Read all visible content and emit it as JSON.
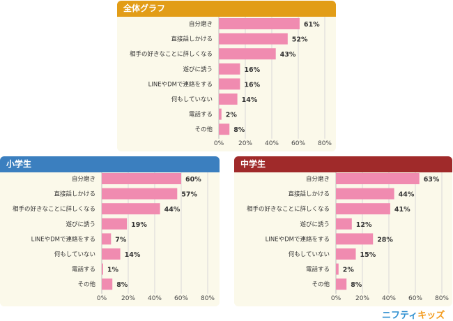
{
  "chart_data": [
    {
      "type": "bar",
      "orientation": "horizontal",
      "title": "全体グラフ",
      "header_color": "#e29d17",
      "bar_color": "#f08bb0",
      "categories": [
        "自分磨き",
        "直接話しかける",
        "相手の好きなことに詳しくなる",
        "遊びに誘う",
        "LINEやDMで連絡をする",
        "何もしていない",
        "電話する",
        "その他"
      ],
      "values": [
        61,
        52,
        43,
        16,
        16,
        14,
        2,
        8
      ],
      "value_suffix": "%",
      "xlim": [
        0,
        80
      ],
      "ticks": [
        "0%",
        "20%",
        "40%",
        "60%",
        "80%"
      ],
      "grid": true
    },
    {
      "type": "bar",
      "orientation": "horizontal",
      "title": "小学生",
      "header_color": "#3b7fbf",
      "bar_color": "#f08bb0",
      "categories": [
        "自分磨き",
        "直接話しかける",
        "相手の好きなことに詳しくなる",
        "遊びに誘う",
        "LINEやDMで連絡をする",
        "何もしていない",
        "電話する",
        "その他"
      ],
      "values": [
        60,
        57,
        44,
        19,
        7,
        14,
        1,
        8
      ],
      "value_suffix": "%",
      "xlim": [
        0,
        80
      ],
      "ticks": [
        "0%",
        "20%",
        "40%",
        "60%",
        "80%"
      ],
      "grid": true
    },
    {
      "type": "bar",
      "orientation": "horizontal",
      "title": "中学生",
      "header_color": "#a02a2a",
      "bar_color": "#f08bb0",
      "categories": [
        "自分磨き",
        "直接話しかける",
        "相手の好きなことに詳しくなる",
        "遊びに誘う",
        "LINEやDMで連絡をする",
        "何もしていない",
        "電話する",
        "その他"
      ],
      "values": [
        63,
        44,
        41,
        12,
        28,
        15,
        2,
        8
      ],
      "value_suffix": "%",
      "xlim": [
        0,
        80
      ],
      "ticks": [
        "0%",
        "20%",
        "40%",
        "60%",
        "80%"
      ],
      "grid": true
    }
  ],
  "logo": {
    "part1": "ニフティ",
    "part2": "キッズ"
  }
}
